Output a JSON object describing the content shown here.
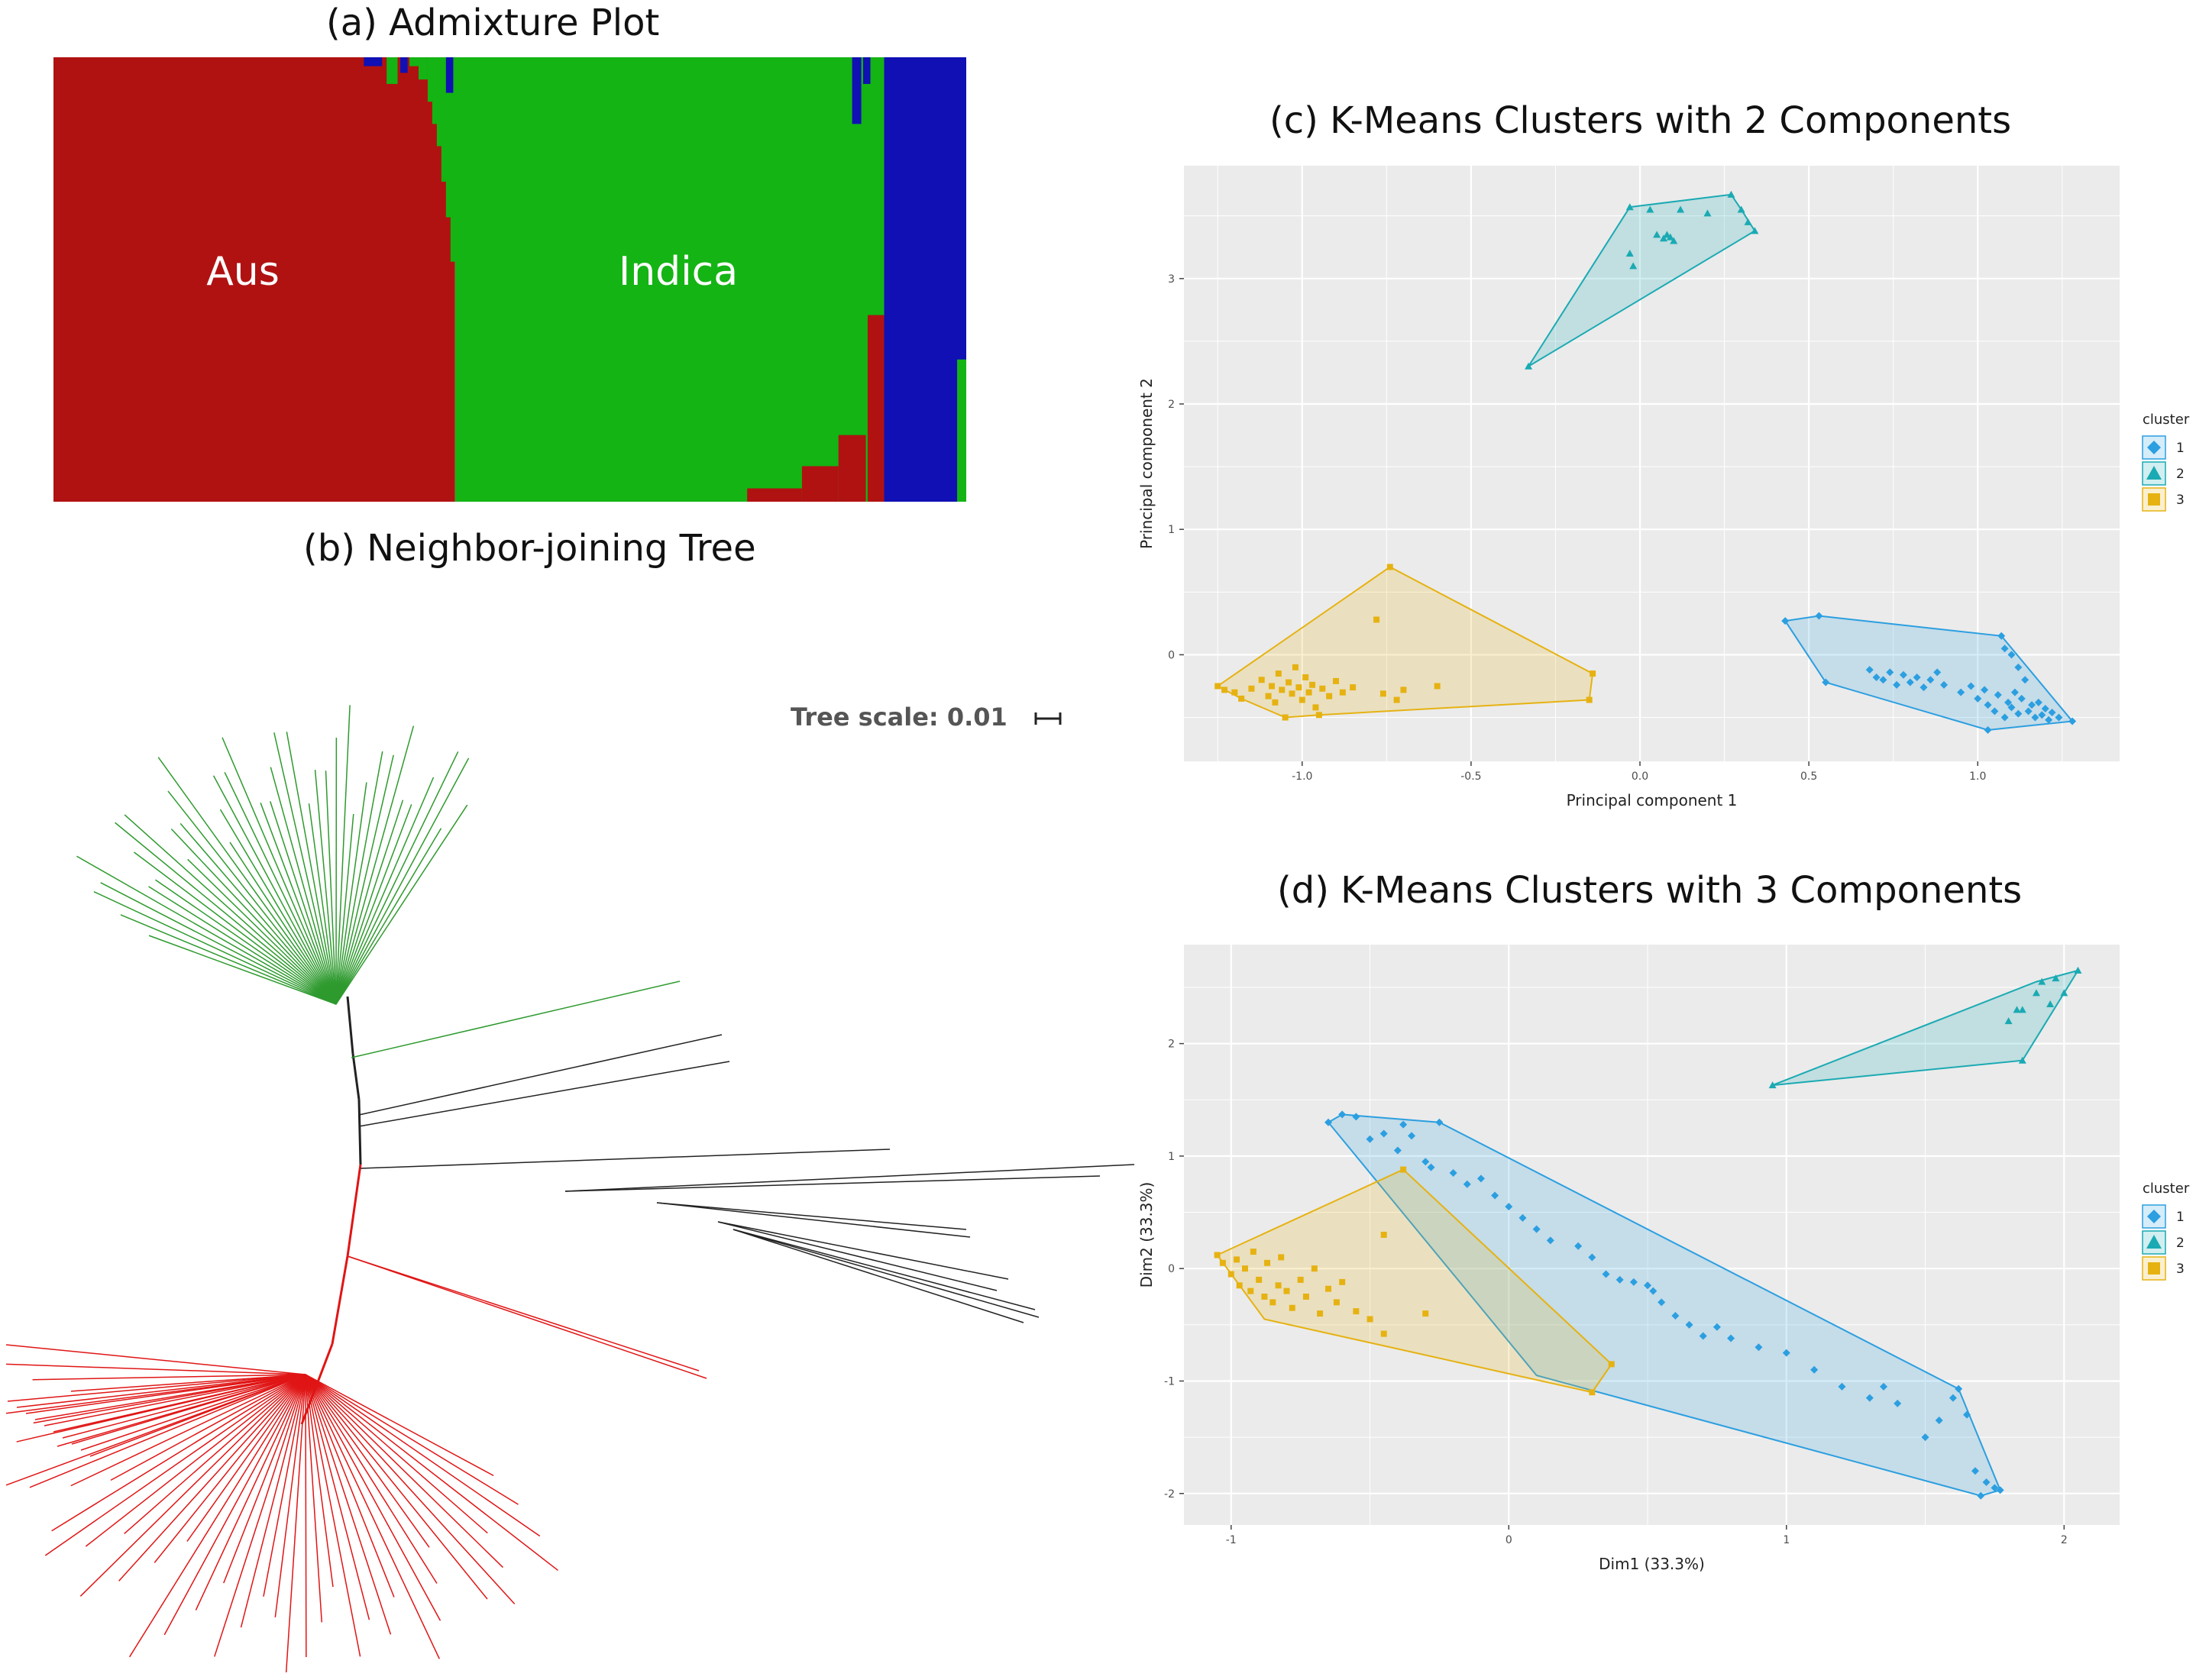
{
  "panels": {
    "a": {
      "title": "(a) Admixture Plot"
    },
    "b": {
      "title": "(b) Neighbor-joining Tree",
      "tree_scale_label": "Tree scale: 0.01"
    },
    "c": {
      "title": "(c) K-Means Clusters with 2 Components"
    },
    "d": {
      "title": "(d) K-Means Clusters with 3 Components"
    }
  },
  "colors": {
    "aus_red": "#b01212",
    "indica_green": "#14b414",
    "blue": "#1010b4",
    "cluster1": "#2b9fe0",
    "cluster2": "#1aaab3",
    "cluster3": "#e6b212",
    "panel_bg": "#ebebeb",
    "tree_green": "#2e9a2e",
    "tree_black": "#222222",
    "tree_red": "#e01515"
  },
  "chart_data": [
    {
      "id": "admixture",
      "type": "area",
      "title": "(a) Admixture Plot",
      "region_labels": [
        "Aus",
        "Indica"
      ],
      "series": [
        {
          "name": "Aus",
          "color": "#b01212"
        },
        {
          "name": "Indica",
          "color": "#14b414"
        },
        {
          "color": "#1010b4"
        }
      ],
      "approx_proportions": {
        "aus_block_fraction_of_samples": 0.44,
        "indica_block_fraction_of_samples": 0.47,
        "blue_block_fraction_of_samples": 0.09
      }
    },
    {
      "id": "nj_tree",
      "type": "tree",
      "title": "(b) Neighbor-joining Tree",
      "scale_label": "Tree scale: 0.01",
      "clades": [
        {
          "color": "green",
          "leaf_count": 42
        },
        {
          "color": "black",
          "leaf_count": 12
        },
        {
          "color": "red",
          "leaf_count": 48
        }
      ]
    },
    {
      "id": "kmeans2",
      "type": "scatter",
      "title": "(c) K-Means Clusters with 2 Components",
      "xlabel": "Principal component 1",
      "ylabel": "Principal component 2",
      "xlim": [
        -1.35,
        1.42
      ],
      "ylim": [
        -0.85,
        3.9
      ],
      "xticks": [
        -1.0,
        -0.5,
        0.0,
        0.5,
        1.0
      ],
      "xtick_labels": [
        "-1.0",
        "-0.5",
        "0.0",
        "0.5",
        "1.0"
      ],
      "yticks": [
        0,
        1,
        2,
        3
      ],
      "ytick_labels": [
        "0",
        "1",
        "2",
        "3"
      ],
      "legend": {
        "title": "cluster",
        "entries": [
          "1",
          "2",
          "3"
        ],
        "placement": "right"
      },
      "series": [
        {
          "name": "1",
          "shape": "diamond",
          "color": "#2b9fe0",
          "hull": [
            [
              0.43,
              0.27
            ],
            [
              0.53,
              0.31
            ],
            [
              1.07,
              0.15
            ],
            [
              1.28,
              -0.53
            ],
            [
              1.03,
              -0.6
            ],
            [
              0.55,
              -0.22
            ]
          ],
          "points": [
            [
              0.43,
              0.27
            ],
            [
              0.53,
              0.31
            ],
            [
              0.55,
              -0.22
            ],
            [
              0.68,
              -0.12
            ],
            [
              0.7,
              -0.18
            ],
            [
              0.72,
              -0.2
            ],
            [
              0.74,
              -0.14
            ],
            [
              0.76,
              -0.24
            ],
            [
              0.78,
              -0.16
            ],
            [
              0.8,
              -0.22
            ],
            [
              0.82,
              -0.18
            ],
            [
              0.84,
              -0.26
            ],
            [
              0.86,
              -0.2
            ],
            [
              0.88,
              -0.14
            ],
            [
              0.9,
              -0.24
            ],
            [
              0.95,
              -0.3
            ],
            [
              0.98,
              -0.25
            ],
            [
              1.0,
              -0.35
            ],
            [
              1.02,
              -0.28
            ],
            [
              1.03,
              -0.4
            ],
            [
              1.05,
              -0.45
            ],
            [
              1.06,
              -0.32
            ],
            [
              1.07,
              0.15
            ],
            [
              1.08,
              0.05
            ],
            [
              1.08,
              -0.5
            ],
            [
              1.09,
              -0.38
            ],
            [
              1.1,
              0.0
            ],
            [
              1.1,
              -0.42
            ],
            [
              1.11,
              -0.3
            ],
            [
              1.12,
              -0.1
            ],
            [
              1.12,
              -0.47
            ],
            [
              1.13,
              -0.35
            ],
            [
              1.14,
              -0.2
            ],
            [
              1.15,
              -0.45
            ],
            [
              1.16,
              -0.4
            ],
            [
              1.17,
              -0.5
            ],
            [
              1.18,
              -0.38
            ],
            [
              1.19,
              -0.48
            ],
            [
              1.2,
              -0.43
            ],
            [
              1.21,
              -0.52
            ],
            [
              1.22,
              -0.46
            ],
            [
              1.24,
              -0.5
            ],
            [
              1.28,
              -0.53
            ],
            [
              1.03,
              -0.6
            ]
          ]
        },
        {
          "name": "2",
          "shape": "triangle",
          "color": "#1aaab3",
          "hull": [
            [
              -0.33,
              2.3
            ],
            [
              -0.03,
              3.57
            ],
            [
              0.27,
              3.67
            ],
            [
              0.3,
              3.55
            ],
            [
              0.34,
              3.38
            ]
          ],
          "points": [
            [
              -0.33,
              2.3
            ],
            [
              -0.03,
              3.57
            ],
            [
              -0.03,
              3.2
            ],
            [
              -0.02,
              3.1
            ],
            [
              0.03,
              3.55
            ],
            [
              0.05,
              3.35
            ],
            [
              0.07,
              3.32
            ],
            [
              0.08,
              3.35
            ],
            [
              0.09,
              3.33
            ],
            [
              0.1,
              3.3
            ],
            [
              0.12,
              3.55
            ],
            [
              0.2,
              3.52
            ],
            [
              0.27,
              3.67
            ],
            [
              0.3,
              3.55
            ],
            [
              0.32,
              3.45
            ],
            [
              0.34,
              3.38
            ]
          ]
        },
        {
          "name": "3",
          "shape": "square",
          "color": "#e6b212",
          "hull": [
            [
              -1.25,
              -0.25
            ],
            [
              -1.18,
              -0.35
            ],
            [
              -1.05,
              -0.5
            ],
            [
              -0.95,
              -0.48
            ],
            [
              -0.15,
              -0.36
            ],
            [
              -0.14,
              -0.15
            ],
            [
              -0.74,
              0.7
            ]
          ],
          "points": [
            [
              -1.25,
              -0.25
            ],
            [
              -1.23,
              -0.28
            ],
            [
              -1.2,
              -0.3
            ],
            [
              -1.18,
              -0.35
            ],
            [
              -1.15,
              -0.27
            ],
            [
              -1.12,
              -0.2
            ],
            [
              -1.1,
              -0.33
            ],
            [
              -1.09,
              -0.25
            ],
            [
              -1.08,
              -0.38
            ],
            [
              -1.07,
              -0.15
            ],
            [
              -1.06,
              -0.28
            ],
            [
              -1.05,
              -0.5
            ],
            [
              -1.04,
              -0.22
            ],
            [
              -1.03,
              -0.31
            ],
            [
              -1.02,
              -0.1
            ],
            [
              -1.01,
              -0.26
            ],
            [
              -1.0,
              -0.36
            ],
            [
              -0.99,
              -0.18
            ],
            [
              -0.98,
              -0.3
            ],
            [
              -0.97,
              -0.24
            ],
            [
              -0.96,
              -0.42
            ],
            [
              -0.95,
              -0.48
            ],
            [
              -0.94,
              -0.27
            ],
            [
              -0.92,
              -0.33
            ],
            [
              -0.9,
              -0.21
            ],
            [
              -0.88,
              -0.3
            ],
            [
              -0.85,
              -0.26
            ],
            [
              -0.78,
              0.28
            ],
            [
              -0.76,
              -0.31
            ],
            [
              -0.74,
              0.7
            ],
            [
              -0.72,
              -0.36
            ],
            [
              -0.7,
              -0.28
            ],
            [
              -0.6,
              -0.25
            ],
            [
              -0.15,
              -0.36
            ],
            [
              -0.14,
              -0.15
            ]
          ]
        }
      ]
    },
    {
      "id": "kmeans3",
      "type": "scatter",
      "title": "(d) K-Means Clusters with 3 Components",
      "xlabel": "Dim1 (33.3%)",
      "ylabel": "Dim2 (33.3%)",
      "xlim": [
        -1.17,
        2.2
      ],
      "ylim": [
        -2.28,
        2.88
      ],
      "xticks": [
        -1,
        0,
        1,
        2
      ],
      "xtick_labels": [
        "-1",
        "0",
        "1",
        "2"
      ],
      "yticks": [
        -2,
        -1,
        0,
        1,
        2
      ],
      "ytick_labels": [
        "-2",
        "-1",
        "0",
        "1",
        "2"
      ],
      "legend": {
        "title": "cluster",
        "entries": [
          "1",
          "2",
          "3"
        ],
        "placement": "right"
      },
      "series": [
        {
          "name": "1",
          "shape": "diamond",
          "color": "#2b9fe0",
          "hull": [
            [
              -0.65,
              1.3
            ],
            [
              -0.6,
              1.37
            ],
            [
              -0.25,
              1.3
            ],
            [
              1.62,
              -1.07
            ],
            [
              1.77,
              -1.97
            ],
            [
              1.7,
              -2.02
            ],
            [
              0.1,
              -0.95
            ]
          ],
          "points": [
            [
              -0.65,
              1.3
            ],
            [
              -0.6,
              1.37
            ],
            [
              -0.55,
              1.35
            ],
            [
              -0.5,
              1.15
            ],
            [
              -0.45,
              1.2
            ],
            [
              -0.4,
              1.05
            ],
            [
              -0.38,
              1.28
            ],
            [
              -0.35,
              1.18
            ],
            [
              -0.3,
              0.95
            ],
            [
              -0.28,
              0.9
            ],
            [
              -0.25,
              1.3
            ],
            [
              -0.2,
              0.85
            ],
            [
              -0.15,
              0.75
            ],
            [
              -0.1,
              0.8
            ],
            [
              -0.05,
              0.65
            ],
            [
              0.0,
              0.55
            ],
            [
              0.05,
              0.45
            ],
            [
              0.1,
              0.35
            ],
            [
              0.15,
              0.25
            ],
            [
              0.25,
              0.2
            ],
            [
              0.3,
              0.1
            ],
            [
              0.35,
              -0.05
            ],
            [
              0.4,
              -0.1
            ],
            [
              0.45,
              -0.12
            ],
            [
              0.5,
              -0.15
            ],
            [
              0.52,
              -0.2
            ],
            [
              0.55,
              -0.3
            ],
            [
              0.6,
              -0.42
            ],
            [
              0.65,
              -0.5
            ],
            [
              0.7,
              -0.6
            ],
            [
              0.75,
              -0.52
            ],
            [
              0.8,
              -0.62
            ],
            [
              0.9,
              -0.7
            ],
            [
              1.0,
              -0.75
            ],
            [
              1.1,
              -0.9
            ],
            [
              1.2,
              -1.05
            ],
            [
              1.3,
              -1.15
            ],
            [
              1.35,
              -1.05
            ],
            [
              1.4,
              -1.2
            ],
            [
              1.5,
              -1.5
            ],
            [
              1.55,
              -1.35
            ],
            [
              1.6,
              -1.15
            ],
            [
              1.62,
              -1.07
            ],
            [
              1.65,
              -1.3
            ],
            [
              1.68,
              -1.8
            ],
            [
              1.72,
              -1.9
            ],
            [
              1.75,
              -1.95
            ],
            [
              1.77,
              -1.97
            ],
            [
              1.7,
              -2.02
            ]
          ]
        },
        {
          "name": "2",
          "shape": "triangle",
          "color": "#1aaab3",
          "hull": [
            [
              0.95,
              1.63
            ],
            [
              1.85,
              1.85
            ],
            [
              2.05,
              2.65
            ],
            [
              1.9,
              2.55
            ]
          ],
          "points": [
            [
              0.95,
              1.63
            ],
            [
              1.8,
              2.2
            ],
            [
              1.83,
              2.3
            ],
            [
              1.85,
              2.3
            ],
            [
              1.85,
              1.85
            ],
            [
              1.9,
              2.45
            ],
            [
              1.92,
              2.55
            ],
            [
              1.95,
              2.35
            ],
            [
              1.97,
              2.58
            ],
            [
              2.0,
              2.45
            ],
            [
              2.05,
              2.65
            ]
          ]
        },
        {
          "name": "3",
          "shape": "square",
          "color": "#e6b212",
          "hull": [
            [
              -1.05,
              0.12
            ],
            [
              -0.88,
              -0.45
            ],
            [
              0.3,
              -1.1
            ],
            [
              0.37,
              -0.85
            ],
            [
              -0.38,
              0.88
            ]
          ],
          "points": [
            [
              -1.05,
              0.12
            ],
            [
              -1.03,
              0.05
            ],
            [
              -1.0,
              -0.05
            ],
            [
              -0.98,
              0.08
            ],
            [
              -0.97,
              -0.15
            ],
            [
              -0.95,
              0.0
            ],
            [
              -0.93,
              -0.2
            ],
            [
              -0.92,
              0.15
            ],
            [
              -0.9,
              -0.1
            ],
            [
              -0.88,
              -0.25
            ],
            [
              -0.87,
              0.05
            ],
            [
              -0.85,
              -0.3
            ],
            [
              -0.83,
              -0.15
            ],
            [
              -0.82,
              0.1
            ],
            [
              -0.8,
              -0.2
            ],
            [
              -0.78,
              -0.35
            ],
            [
              -0.75,
              -0.1
            ],
            [
              -0.73,
              -0.25
            ],
            [
              -0.7,
              0.0
            ],
            [
              -0.68,
              -0.4
            ],
            [
              -0.65,
              -0.18
            ],
            [
              -0.62,
              -0.3
            ],
            [
              -0.6,
              -0.12
            ],
            [
              -0.55,
              -0.38
            ],
            [
              -0.5,
              -0.45
            ],
            [
              -0.45,
              0.3
            ],
            [
              -0.45,
              -0.58
            ],
            [
              -0.38,
              0.88
            ],
            [
              -0.3,
              -0.4
            ],
            [
              0.3,
              -1.1
            ],
            [
              0.37,
              -0.85
            ]
          ]
        }
      ]
    }
  ]
}
